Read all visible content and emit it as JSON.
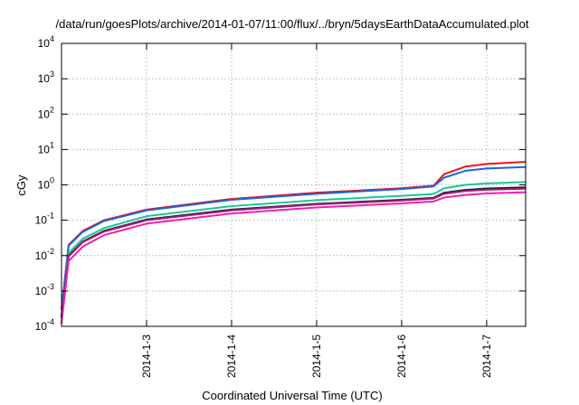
{
  "chart_data": {
    "type": "line",
    "title": "/data/run/goesPlots/archive/2014-01-07/11:00/flux/../bryn/5daysEarthDataAccumulated.plot",
    "xlabel": "Coordinated Universal Time (UTC)",
    "ylabel": "cGy",
    "y_scale": "log",
    "ylim": [
      0.0001,
      10000
    ],
    "xlim": [
      "2014-01-02T00:00",
      "2014-01-07T11:00"
    ],
    "x_ticks": [
      "2014-1-3",
      "2014-1-4",
      "2014-1-5",
      "2014-1-6",
      "2014-1-7"
    ],
    "y_ticks": [
      {
        "base": "10",
        "exp": "-4"
      },
      {
        "base": "10",
        "exp": "-3"
      },
      {
        "base": "10",
        "exp": "-2"
      },
      {
        "base": "10",
        "exp": "-1"
      },
      {
        "base": "10",
        "exp": "0"
      },
      {
        "base": "10",
        "exp": "1"
      },
      {
        "base": "10",
        "exp": "2"
      },
      {
        "base": "10",
        "exp": "3"
      },
      {
        "base": "10",
        "exp": "4"
      }
    ],
    "grid": true,
    "series": [
      {
        "color": "#e8141e",
        "x": [
          "2014-01-02T00:00",
          "2014-01-02T02:00",
          "2014-01-02T06:00",
          "2014-01-02T12:00",
          "2014-01-03T00:00",
          "2014-01-04T00:00",
          "2014-01-05T00:00",
          "2014-01-06T00:00",
          "2014-01-06T09:00",
          "2014-01-06T12:00",
          "2014-01-06T18:00",
          "2014-01-07T00:00",
          "2014-01-07T11:00"
        ],
        "values": [
          0.0003,
          0.02,
          0.05,
          0.1,
          0.2,
          0.4,
          0.6,
          0.8,
          0.95,
          2.0,
          3.3,
          3.9,
          4.5
        ]
      },
      {
        "color": "#1e64dc",
        "x": [
          "2014-01-02T00:00",
          "2014-01-02T02:00",
          "2014-01-02T06:00",
          "2014-01-02T12:00",
          "2014-01-03T00:00",
          "2014-01-04T00:00",
          "2014-01-05T00:00",
          "2014-01-06T00:00",
          "2014-01-06T09:00",
          "2014-01-06T12:00",
          "2014-01-06T18:00",
          "2014-01-07T00:00",
          "2014-01-07T11:00"
        ],
        "values": [
          0.0003,
          0.019,
          0.047,
          0.095,
          0.19,
          0.38,
          0.56,
          0.76,
          0.9,
          1.6,
          2.5,
          2.9,
          3.2
        ]
      },
      {
        "color": "#14c8a0",
        "x": [
          "2014-01-02T00:00",
          "2014-01-02T02:00",
          "2014-01-02T06:00",
          "2014-01-02T12:00",
          "2014-01-03T00:00",
          "2014-01-04T00:00",
          "2014-01-05T00:00",
          "2014-01-06T00:00",
          "2014-01-06T09:00",
          "2014-01-06T12:00",
          "2014-01-06T18:00",
          "2014-01-07T00:00",
          "2014-01-07T11:00"
        ],
        "values": [
          0.0002,
          0.012,
          0.03,
          0.06,
          0.13,
          0.25,
          0.37,
          0.49,
          0.55,
          0.8,
          1.0,
          1.1,
          1.2
        ]
      },
      {
        "color": "#1e1e1e",
        "x": [
          "2014-01-02T00:00",
          "2014-01-02T02:00",
          "2014-01-02T06:00",
          "2014-01-02T12:00",
          "2014-01-03T00:00",
          "2014-01-04T00:00",
          "2014-01-05T00:00",
          "2014-01-06T00:00",
          "2014-01-06T09:00",
          "2014-01-06T12:00",
          "2014-01-06T18:00",
          "2014-01-07T00:00",
          "2014-01-07T11:00"
        ],
        "values": [
          0.00018,
          0.01,
          0.025,
          0.05,
          0.105,
          0.2,
          0.29,
          0.38,
          0.43,
          0.6,
          0.72,
          0.79,
          0.85
        ]
      },
      {
        "color": "#a01e78",
        "x": [
          "2014-01-02T00:00",
          "2014-01-02T02:00",
          "2014-01-02T06:00",
          "2014-01-02T12:00",
          "2014-01-03T00:00",
          "2014-01-04T00:00",
          "2014-01-05T00:00",
          "2014-01-06T00:00",
          "2014-01-06T09:00",
          "2014-01-06T12:00",
          "2014-01-06T18:00",
          "2014-01-07T00:00",
          "2014-01-07T11:00"
        ],
        "values": [
          0.00017,
          0.0095,
          0.024,
          0.048,
          0.1,
          0.19,
          0.28,
          0.36,
          0.41,
          0.56,
          0.67,
          0.73,
          0.78
        ]
      },
      {
        "color": "#f01eb4",
        "x": [
          "2014-01-02T00:00",
          "2014-01-02T02:00",
          "2014-01-02T06:00",
          "2014-01-02T12:00",
          "2014-01-03T00:00",
          "2014-01-04T00:00",
          "2014-01-05T00:00",
          "2014-01-06T00:00",
          "2014-01-06T09:00",
          "2014-01-06T12:00",
          "2014-01-06T18:00",
          "2014-01-07T00:00",
          "2014-01-07T11:00"
        ],
        "values": [
          0.00012,
          0.007,
          0.018,
          0.038,
          0.08,
          0.155,
          0.23,
          0.3,
          0.34,
          0.44,
          0.52,
          0.57,
          0.62
        ]
      }
    ]
  }
}
